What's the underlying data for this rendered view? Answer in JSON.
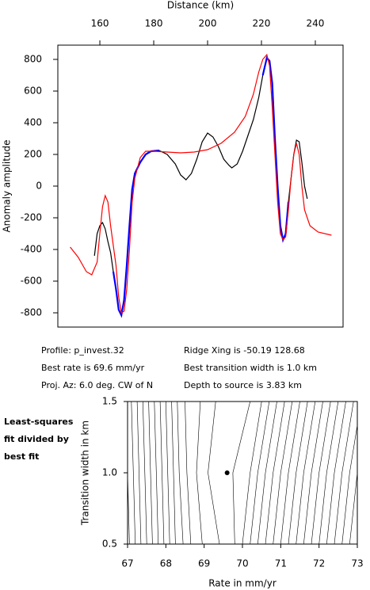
{
  "chart_data": [
    {
      "type": "line",
      "xlabel": "Distance (km)",
      "ylabel": "Anomaly amplitude",
      "xlim": [
        144.4,
        250.3
      ],
      "xticks": [
        160,
        180,
        200,
        220,
        240
      ],
      "ylim": [
        -890,
        890
      ],
      "yticks": [
        800,
        600,
        400,
        200,
        0,
        -200,
        -400,
        -600,
        -800
      ],
      "series": [
        {
          "name": "observed",
          "color": "#000000",
          "x": [
            158,
            159,
            160,
            161,
            162,
            163,
            164,
            165,
            166,
            167,
            168,
            169,
            170,
            171,
            172,
            173,
            175,
            177,
            179,
            182,
            185,
            188,
            190,
            192,
            194,
            196,
            198,
            200,
            202,
            204,
            206,
            208,
            209,
            211,
            213,
            215,
            217,
            219,
            220.5,
            222,
            223,
            224,
            225,
            226,
            227,
            228,
            229,
            230,
            231,
            232,
            233,
            234,
            235,
            236,
            237
          ],
          "values": [
            -440,
            -300,
            -250,
            -230,
            -270,
            -350,
            -420,
            -540,
            -650,
            -780,
            -815,
            -720,
            -500,
            -250,
            -20,
            80,
            150,
            200,
            220,
            225,
            200,
            140,
            70,
            40,
            80,
            170,
            280,
            335,
            310,
            250,
            170,
            130,
            115,
            140,
            220,
            320,
            420,
            560,
            700,
            810,
            790,
            650,
            300,
            0,
            -250,
            -340,
            -300,
            -100,
            50,
            200,
            290,
            280,
            150,
            0,
            -80
          ]
        },
        {
          "name": "fit",
          "color": "#0000ff",
          "x": [
            165,
            166,
            167,
            168,
            169,
            170,
            171,
            172,
            173,
            175,
            177,
            179,
            182,
            200,
            220.5,
            222,
            223,
            224,
            225,
            226,
            227,
            228,
            229,
            230
          ],
          "values": [
            -540,
            -650,
            -780,
            -815,
            -720,
            -500,
            -250,
            -20,
            80,
            150,
            200,
            220,
            225,
            null,
            700,
            810,
            790,
            650,
            300,
            0,
            -250,
            -340,
            -300,
            -100
          ]
        },
        {
          "name": "model",
          "color": "#ff0000",
          "x": [
            149,
            152,
            155,
            157,
            159,
            160,
            161,
            162,
            163,
            164,
            166,
            167,
            168,
            169,
            170,
            171,
            172,
            173,
            175,
            177,
            180,
            185,
            190,
            195,
            200,
            205,
            210,
            214,
            217,
            219,
            220.5,
            222,
            223,
            224,
            225,
            226,
            227,
            228,
            229,
            230,
            231,
            232,
            233,
            234,
            235,
            236,
            238,
            241,
            246
          ],
          "values": [
            -385,
            -450,
            -540,
            -560,
            -480,
            -300,
            -130,
            -60,
            -100,
            -250,
            -500,
            -700,
            -800,
            -790,
            -650,
            -400,
            -100,
            50,
            180,
            220,
            220,
            215,
            210,
            215,
            230,
            270,
            340,
            440,
            580,
            720,
            800,
            830,
            760,
            500,
            200,
            -100,
            -300,
            -340,
            -320,
            -150,
            50,
            200,
            270,
            200,
            0,
            -150,
            -250,
            -290,
            -310
          ]
        }
      ]
    },
    {
      "type": "contour",
      "xlabel": "Rate in mm/yr",
      "ylabel": "Transition width in km",
      "xlim": [
        67,
        73
      ],
      "xticks": [
        67,
        68,
        69,
        70,
        71,
        72,
        73
      ],
      "ylim": [
        0.5,
        1.5
      ],
      "yticks": [
        0.5,
        {
          "value": 1,
          "label": "1.0"
        },
        1.5
      ],
      "color": "#000000",
      "best_point": {
        "x": 69.6,
        "y": 1.0
      },
      "contours": [
        {
          "x": [
            67.05,
            67.0,
            66.95
          ],
          "y": [
            0.5,
            1.0,
            1.5
          ]
        },
        {
          "x": [
            67.2,
            67.15,
            67.1
          ],
          "y": [
            0.5,
            1.0,
            1.5
          ]
        },
        {
          "x": [
            67.35,
            67.3,
            67.25
          ],
          "y": [
            0.5,
            1.0,
            1.5
          ]
        },
        {
          "x": [
            67.5,
            67.45,
            67.4
          ],
          "y": [
            0.5,
            1.0,
            1.5
          ]
        },
        {
          "x": [
            67.65,
            67.6,
            67.55
          ],
          "y": [
            0.5,
            1.0,
            1.5
          ]
        },
        {
          "x": [
            67.8,
            67.75,
            67.7
          ],
          "y": [
            0.5,
            1.0,
            1.5
          ]
        },
        {
          "x": [
            67.95,
            67.9,
            67.85
          ],
          "y": [
            0.5,
            1.0,
            1.5
          ]
        },
        {
          "x": [
            68.1,
            68.05,
            68.0
          ],
          "y": [
            0.5,
            1.0,
            1.5
          ]
        },
        {
          "x": [
            68.25,
            68.2,
            68.15
          ],
          "y": [
            0.5,
            1.0,
            1.5
          ]
        },
        {
          "x": [
            68.45,
            68.35,
            68.3
          ],
          "y": [
            0.5,
            1.0,
            1.5
          ]
        },
        {
          "x": [
            68.65,
            68.55,
            68.5
          ],
          "y": [
            0.5,
            1.0,
            1.5
          ]
        },
        {
          "x": [
            68.95,
            68.8,
            68.9
          ],
          "y": [
            0.5,
            1.0,
            1.5
          ]
        },
        {
          "x": [
            69.4,
            69.1,
            69.3
          ],
          "y": [
            0.5,
            1.0,
            1.5
          ]
        },
        {
          "x": [
            69.8,
            69.75,
            70.2
          ],
          "y": [
            0.5,
            1.0,
            1.5
          ]
        },
        {
          "x": [
            70.0,
            70.2,
            70.5
          ],
          "y": [
            0.5,
            1.0,
            1.5
          ]
        },
        {
          "x": [
            70.2,
            70.4,
            70.7
          ],
          "y": [
            0.5,
            1.0,
            1.5
          ]
        },
        {
          "x": [
            70.4,
            70.6,
            70.9
          ],
          "y": [
            0.5,
            1.0,
            1.5
          ]
        },
        {
          "x": [
            70.6,
            70.8,
            71.1
          ],
          "y": [
            0.5,
            1.0,
            1.5
          ]
        },
        {
          "x": [
            70.8,
            71.0,
            71.3
          ],
          "y": [
            0.5,
            1.0,
            1.5
          ]
        },
        {
          "x": [
            71.0,
            71.2,
            71.5
          ],
          "y": [
            0.5,
            1.0,
            1.5
          ]
        },
        {
          "x": [
            71.2,
            71.4,
            71.7
          ],
          "y": [
            0.5,
            1.0,
            1.5
          ]
        },
        {
          "x": [
            71.4,
            71.6,
            71.9
          ],
          "y": [
            0.5,
            1.0,
            1.5
          ]
        },
        {
          "x": [
            71.6,
            71.8,
            72.1
          ],
          "y": [
            0.5,
            1.0,
            1.5
          ]
        },
        {
          "x": [
            71.8,
            72.0,
            72.3
          ],
          "y": [
            0.5,
            1.0,
            1.5
          ]
        },
        {
          "x": [
            72.0,
            72.2,
            72.5
          ],
          "y": [
            0.5,
            1.0,
            1.5
          ]
        },
        {
          "x": [
            72.2,
            72.4,
            72.7
          ],
          "y": [
            0.5,
            1.0,
            1.5
          ]
        },
        {
          "x": [
            72.4,
            72.6,
            72.9
          ],
          "y": [
            0.5,
            1.0,
            1.5
          ]
        },
        {
          "x": [
            72.6,
            72.8,
            73.1
          ],
          "y": [
            0.5,
            1.0,
            1.5
          ]
        },
        {
          "x": [
            72.8,
            73.0,
            73.3
          ],
          "y": [
            0.5,
            1.0,
            1.5
          ]
        }
      ]
    }
  ],
  "info": {
    "left": [
      "Profile: p_invest.32",
      "Best rate is 69.6 mm/yr",
      "Proj. Az: 6.0 deg. CW of N"
    ],
    "right": [
      "Ridge Xing is -50.19 128.68",
      "Best transition width is 1.0 km",
      "Depth to source is   3.83 km"
    ]
  },
  "note_lines": [
    "Least-squares",
    "fit divided by",
    "best fit"
  ]
}
